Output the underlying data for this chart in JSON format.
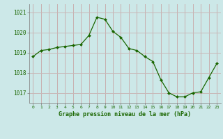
{
  "hours": [
    0,
    1,
    2,
    3,
    4,
    5,
    6,
    7,
    8,
    9,
    10,
    11,
    12,
    13,
    14,
    15,
    16,
    17,
    18,
    19,
    20,
    21,
    22,
    23
  ],
  "pressure": [
    1018.8,
    1019.1,
    1019.15,
    1019.25,
    1019.3,
    1019.35,
    1019.4,
    1019.85,
    1020.75,
    1020.65,
    1020.05,
    1019.75,
    1019.2,
    1019.1,
    1018.8,
    1018.55,
    1017.65,
    1017.0,
    1016.8,
    1016.8,
    1017.0,
    1017.05,
    1017.75,
    1018.45
  ],
  "line_color": "#1a6600",
  "marker_color": "#1a6600",
  "bg_color": "#cce8e8",
  "grid_color_h": "#c8b8b8",
  "grid_color_v": "#c8b0b0",
  "xlabel": "Graphe pression niveau de la mer (hPa)",
  "xlabel_color": "#1a6600",
  "tick_color": "#1a6600",
  "spine_color": "#888888",
  "ylim": [
    1016.5,
    1021.4
  ],
  "yticks": [
    1017,
    1018,
    1019,
    1020,
    1021
  ],
  "xlim": [
    -0.5,
    23.5
  ],
  "figsize": [
    3.2,
    2.0
  ],
  "dpi": 100
}
